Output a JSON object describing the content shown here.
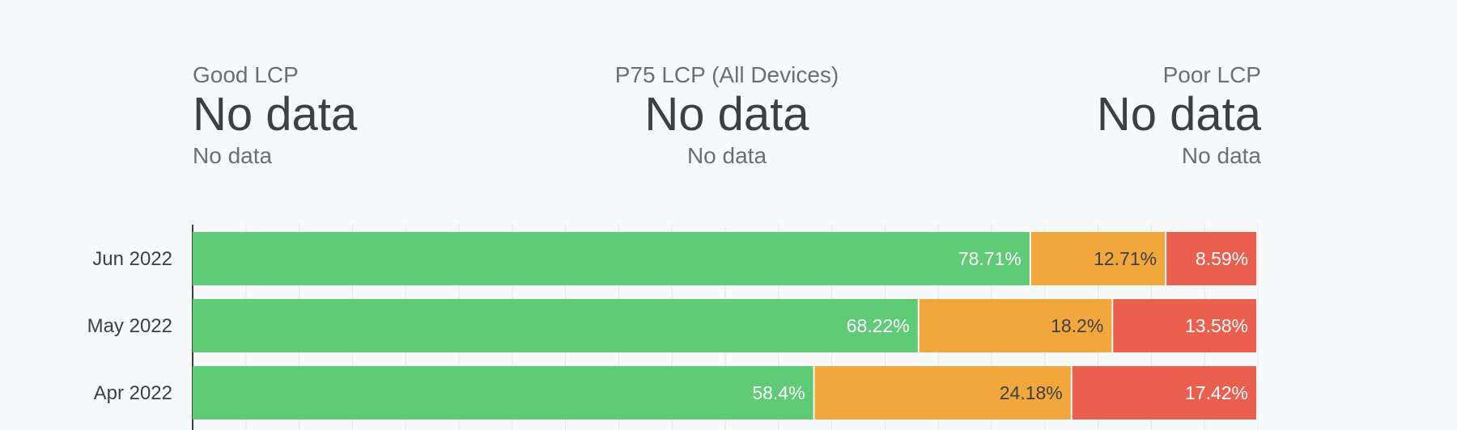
{
  "scorecards": {
    "good": {
      "title": "Good LCP",
      "value": "No data",
      "sub": "No data"
    },
    "p75": {
      "title": "P75 LCP (All Devices)",
      "value": "No data",
      "sub": "No data"
    },
    "poor": {
      "title": "Poor LCP",
      "value": "No data",
      "sub": "No data"
    }
  },
  "chart_data": {
    "type": "bar",
    "orientation": "horizontal",
    "stacked": true,
    "categories": [
      "Jun 2022",
      "May 2022",
      "Apr 2022"
    ],
    "series": [
      {
        "values": [
          78.71,
          68.22,
          58.4
        ],
        "labels": [
          "78.71%",
          "68.22%",
          "58.4%"
        ],
        "color": "#5fcb76",
        "label_color": "#ffffff"
      },
      {
        "values": [
          12.71,
          18.2,
          24.18
        ],
        "labels": [
          "12.71%",
          "18.2%",
          "24.18%"
        ],
        "color": "#f1a73c",
        "label_color": "#3c4043"
      },
      {
        "values": [
          8.59,
          13.58,
          17.42
        ],
        "labels": [
          "8.59%",
          "13.58%",
          "17.42%"
        ],
        "color": "#eb5f4f",
        "label_color": "#ffffff"
      }
    ],
    "xlim": [
      0,
      100
    ],
    "grid": true,
    "colors": {
      "grid": "#e3e5e8",
      "axis": "#3c4043"
    }
  }
}
